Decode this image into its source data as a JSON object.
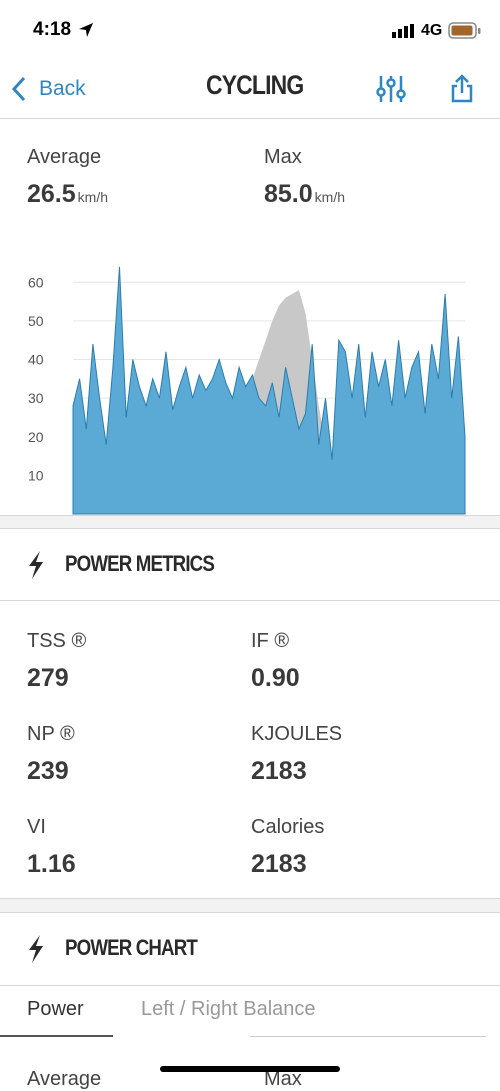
{
  "status_bar": {
    "time": "4:18",
    "network": "4G"
  },
  "nav": {
    "back": "Back",
    "title": "CYCLING"
  },
  "speed": {
    "average_label": "Average",
    "average_value": "26.5",
    "average_unit": "km/h",
    "max_label": "Max",
    "max_value": "85.0",
    "max_unit": "km/h"
  },
  "chart_data": {
    "type": "area",
    "ylim": [
      0,
      65
    ],
    "yticks": [
      10,
      20,
      30,
      40,
      50,
      60
    ],
    "grid": true,
    "series": [
      {
        "color": "#c8c8c8",
        "values": [
          2,
          3,
          3,
          4,
          4,
          5,
          5,
          6,
          6,
          7,
          7,
          8,
          8,
          8,
          9,
          9,
          10,
          10,
          10,
          11,
          12,
          13,
          15,
          18,
          22,
          26,
          30,
          35,
          40,
          45,
          50,
          54,
          56,
          57,
          58,
          52,
          40,
          28,
          18,
          12,
          8,
          6,
          5,
          4,
          3,
          3,
          2,
          2,
          2,
          1,
          1,
          1,
          1,
          1,
          1,
          1,
          1,
          1,
          1,
          1
        ]
      },
      {
        "color": "#5aaad5",
        "values": [
          28,
          35,
          22,
          44,
          30,
          18,
          38,
          64,
          25,
          40,
          33,
          28,
          35,
          30,
          42,
          27,
          33,
          38,
          30,
          36,
          32,
          35,
          40,
          34,
          30,
          38,
          33,
          36,
          30,
          28,
          34,
          25,
          38,
          30,
          22,
          26,
          44,
          18,
          30,
          14,
          45,
          42,
          30,
          44,
          25,
          42,
          33,
          40,
          28,
          45,
          30,
          38,
          42,
          26,
          44,
          35,
          57,
          30,
          46,
          20
        ]
      }
    ]
  },
  "power_metrics": {
    "title": "POWER METRICS",
    "items": [
      {
        "label": "TSS ®",
        "value": "279"
      },
      {
        "label": "IF ®",
        "value": "0.90"
      },
      {
        "label": "NP ®",
        "value": "239"
      },
      {
        "label": "KJOULES",
        "value": "2183"
      },
      {
        "label": "VI",
        "value": "1.16"
      },
      {
        "label": "Calories",
        "value": "2183"
      }
    ]
  },
  "power_chart": {
    "title": "POWER CHART",
    "tabs": [
      "Power",
      "Left / Right Balance"
    ],
    "average_label": "Average",
    "max_label": "Max"
  }
}
